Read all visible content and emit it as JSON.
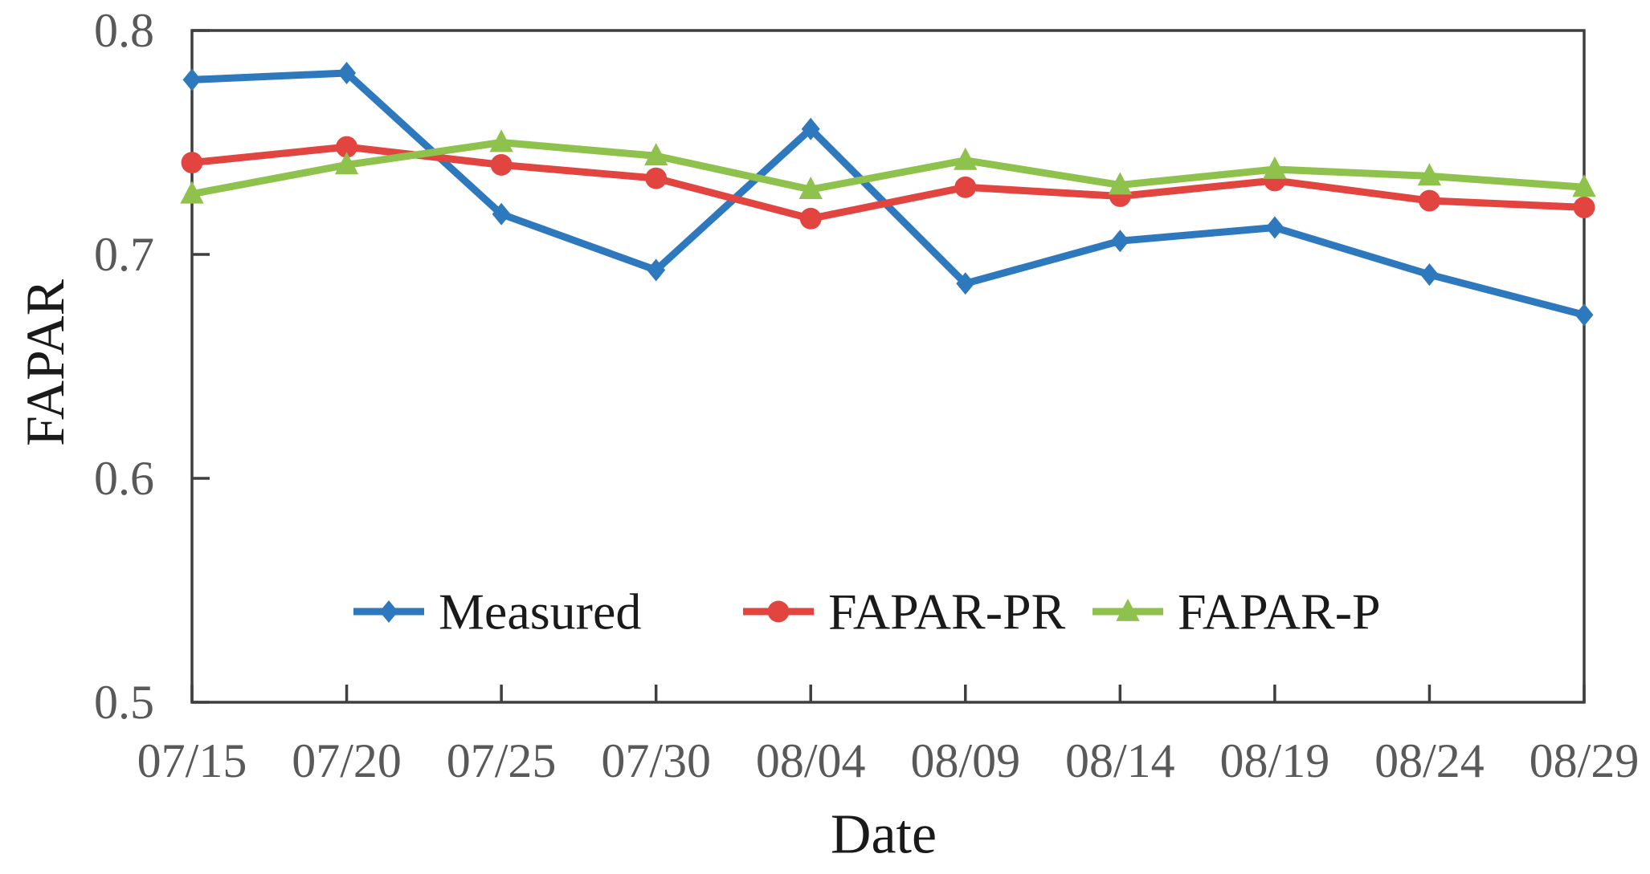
{
  "figure": {
    "background": "#ffffff"
  },
  "chart_data": {
    "type": "line",
    "title": "",
    "xlabel": "Date",
    "ylabel": "FAPAR",
    "categories": [
      "07/15",
      "07/20",
      "07/25",
      "07/30",
      "08/04",
      "08/09",
      "08/14",
      "08/19",
      "08/24",
      "08/29"
    ],
    "ylim": [
      0.5,
      0.8
    ],
    "yticks": [
      0.8,
      0.7,
      0.6,
      0.5
    ],
    "ytick_labels": [
      "0.8",
      "0.7",
      "0.6",
      "0.5"
    ],
    "grid": false,
    "legend_position": "inside-bottom",
    "axis_color": "#3f3f3f",
    "tick_label_color": "#595959",
    "text_color": "#1a1a1a",
    "series": [
      {
        "name": "Measured",
        "color": "#2E79BD",
        "marker": "diamond",
        "values": [
          0.778,
          0.781,
          0.718,
          0.693,
          0.756,
          0.687,
          0.706,
          0.712,
          0.691,
          0.673
        ]
      },
      {
        "name": "FAPAR-PR",
        "color": "#E2453F",
        "marker": "circle",
        "values": [
          0.741,
          0.748,
          0.74,
          0.734,
          0.716,
          0.73,
          0.726,
          0.733,
          0.724,
          0.721
        ]
      },
      {
        "name": "FAPAR-P",
        "color": "#8FC24D",
        "marker": "triangle",
        "values": [
          0.727,
          0.74,
          0.75,
          0.744,
          0.729,
          0.742,
          0.731,
          0.738,
          0.735,
          0.73
        ]
      }
    ]
  }
}
